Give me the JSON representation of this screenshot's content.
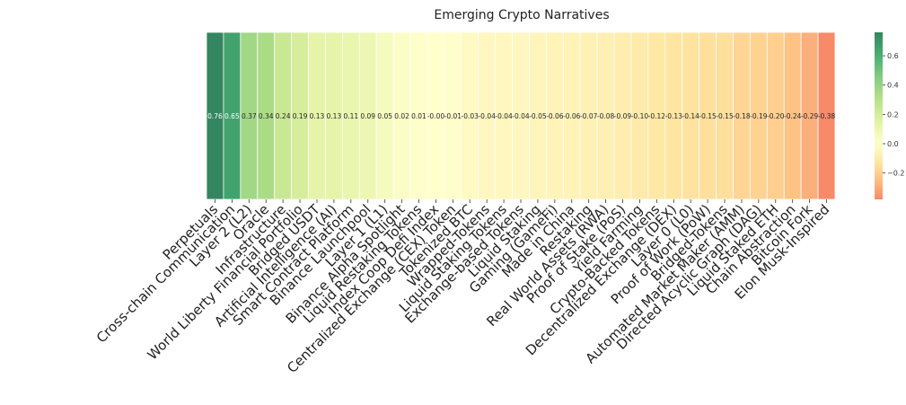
{
  "chart_data": {
    "type": "heatmap",
    "title": "Emerging Crypto Narratives",
    "xlabel": "",
    "ylabel": "",
    "categories": [
      "Perpetuals",
      "Cross-chain Communication",
      "Layer 2 (L2)",
      "Oracle",
      "Infrastructure",
      "World Liberty Financial Portfolio",
      "Bridged USDT",
      "Artificial Intelligence (AI)",
      "Smart Contract Platform",
      "Binance Launchpool",
      "Layer 1 (L1)",
      "Binance Alpha Spotlight",
      "Liquid Restaking Tokens",
      "Index Coop Defi Index",
      "Centralized Exchange (CEX) Token",
      "Tokenized BTC",
      "Wrapped-Tokens",
      "Liquid Staking Tokens",
      "Exchange-based Tokens",
      "Liquid Staking",
      "Gaming (GameFi)",
      "Made in China",
      "Restaking",
      "Real World Assets (RWA)",
      "Proof of Stake (PoS)",
      "Yield Farming",
      "Crypto-Backed Tokens",
      "Decentralized Exchange (DEX)",
      "Layer 0 (L0)",
      "Proof of Work (PoW)",
      "Bridged-Tokens",
      "Automated Market Maker (AMM)",
      "Directed Acyclic Graph (DAG)",
      "Liquid Staked ETH",
      "Chain Abstraction",
      "Bitcoin Fork",
      "Elon Musk-Inspired"
    ],
    "values": [
      0.76,
      0.65,
      0.37,
      0.34,
      0.24,
      0.19,
      0.13,
      0.13,
      0.11,
      0.09,
      0.05,
      0.02,
      0.01,
      -0.0,
      -0.01,
      -0.03,
      -0.04,
      -0.04,
      -0.04,
      -0.05,
      -0.06,
      -0.06,
      -0.07,
      -0.08,
      -0.09,
      -0.1,
      -0.12,
      -0.13,
      -0.14,
      -0.15,
      -0.15,
      -0.18,
      -0.19,
      -0.2,
      -0.24,
      -0.29,
      -0.38
    ],
    "value_labels": [
      "0.76",
      "0.65",
      "0.37",
      "0.34",
      "0.24",
      "0.19",
      "0.13",
      "0.13",
      "0.11",
      "0.09",
      "0.05",
      "0.02",
      "0.01",
      "-0.00",
      "-0.01",
      "-0.03",
      "-0.04",
      "-0.04",
      "-0.04",
      "-0.05",
      "-0.06",
      "-0.06",
      "-0.07",
      "-0.08",
      "-0.09",
      "-0.10",
      "-0.12",
      "-0.13",
      "-0.14",
      "-0.15",
      "-0.15",
      "-0.18",
      "-0.19",
      "-0.20",
      "-0.24",
      "-0.29",
      "-0.38"
    ],
    "colormap": "RdYlGn",
    "vmin": -0.38,
    "vmax": 0.76,
    "colorbar": {
      "ticks": [
        0.6,
        0.4,
        0.2,
        0.0,
        -0.2
      ],
      "tick_labels": [
        "0.6",
        "0.4",
        "0.2",
        "0.0",
        "−0.2"
      ]
    },
    "grid": false,
    "legend": "colorbar-right"
  }
}
